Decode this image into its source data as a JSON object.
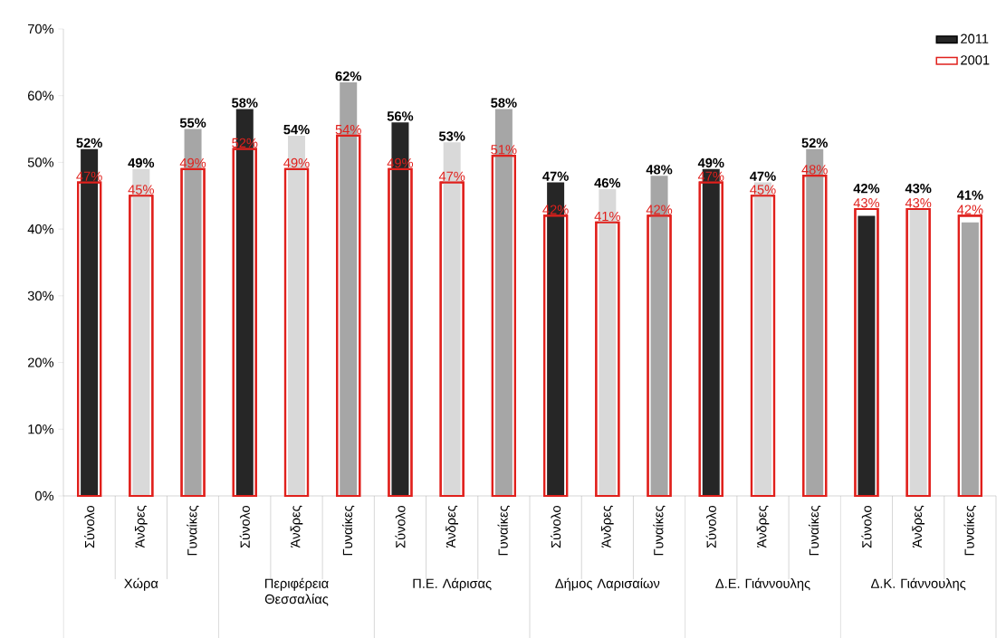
{
  "chart_data": {
    "type": "bar",
    "categories": [
      "Σύνολο",
      "Άνδρες",
      "Γυναίκες",
      "Σύνολο",
      "Άνδρες",
      "Γυναίκες",
      "Σύνολο",
      "Άνδρες",
      "Γυναίκες",
      "Σύνολο",
      "Άνδρες",
      "Γυναίκες",
      "Σύνολο",
      "Άνδρες",
      "Γυναίκες",
      "Σύνολο",
      "Άνδρες",
      "Γυναίκες"
    ],
    "annotations": [
      "Χώρα",
      "Περιφέρεια Θεσσαλίας",
      "Π.Ε. Λάρισας",
      "Δήμος Λαρισαίων",
      "Δ.Ε. Γιάννουλης",
      "Δ.Κ. Γιάννουλης"
    ],
    "ylim": [
      0,
      70
    ],
    "yticks": [
      {
        "value": 0,
        "label": "0%"
      },
      {
        "value": 10,
        "label": "10%"
      },
      {
        "value": 20,
        "label": "20%"
      },
      {
        "value": 30,
        "label": "30%"
      },
      {
        "value": 40,
        "label": "40%"
      },
      {
        "value": 50,
        "label": "50%"
      },
      {
        "value": 60,
        "label": "60%"
      },
      {
        "value": 70,
        "label": "70%"
      }
    ],
    "legend": "top right",
    "series": [
      {
        "name": "2011",
        "color": "#000000",
        "colors": [
          "#262626",
          "#d9d9d9",
          "#a6a6a6",
          "#262626",
          "#d9d9d9",
          "#a6a6a6",
          "#262626",
          "#d9d9d9",
          "#a6a6a6",
          "#262626",
          "#d9d9d9",
          "#a6a6a6",
          "#262626",
          "#d9d9d9",
          "#a6a6a6",
          "#262626",
          "#d9d9d9",
          "#a6a6a6"
        ],
        "values": [
          52,
          49,
          55,
          58,
          54,
          62,
          56,
          53,
          58,
          47,
          46,
          48,
          49,
          47,
          52,
          42,
          43,
          41
        ],
        "value_labels": [
          "52%",
          "49%",
          "55%",
          "58%",
          "54%",
          "62%",
          "56%",
          "53%",
          "58%",
          "47%",
          "46%",
          "48%",
          "49%",
          "47%",
          "52%",
          "42%",
          "43%",
          "41%"
        ]
      },
      {
        "name": "2001",
        "color": "#e0201c",
        "values": [
          47,
          45,
          49,
          52,
          49,
          54,
          49,
          47,
          51,
          42,
          41,
          42,
          47,
          45,
          48,
          43,
          43,
          42
        ],
        "value_labels": [
          "47%",
          "45%",
          "49%",
          "52%",
          "49%",
          "54%",
          "49%",
          "47%",
          "51%",
          "42%",
          "41%",
          "42%",
          "47%",
          "45%",
          "48%",
          "43%",
          "43%",
          "42%"
        ]
      }
    ]
  }
}
